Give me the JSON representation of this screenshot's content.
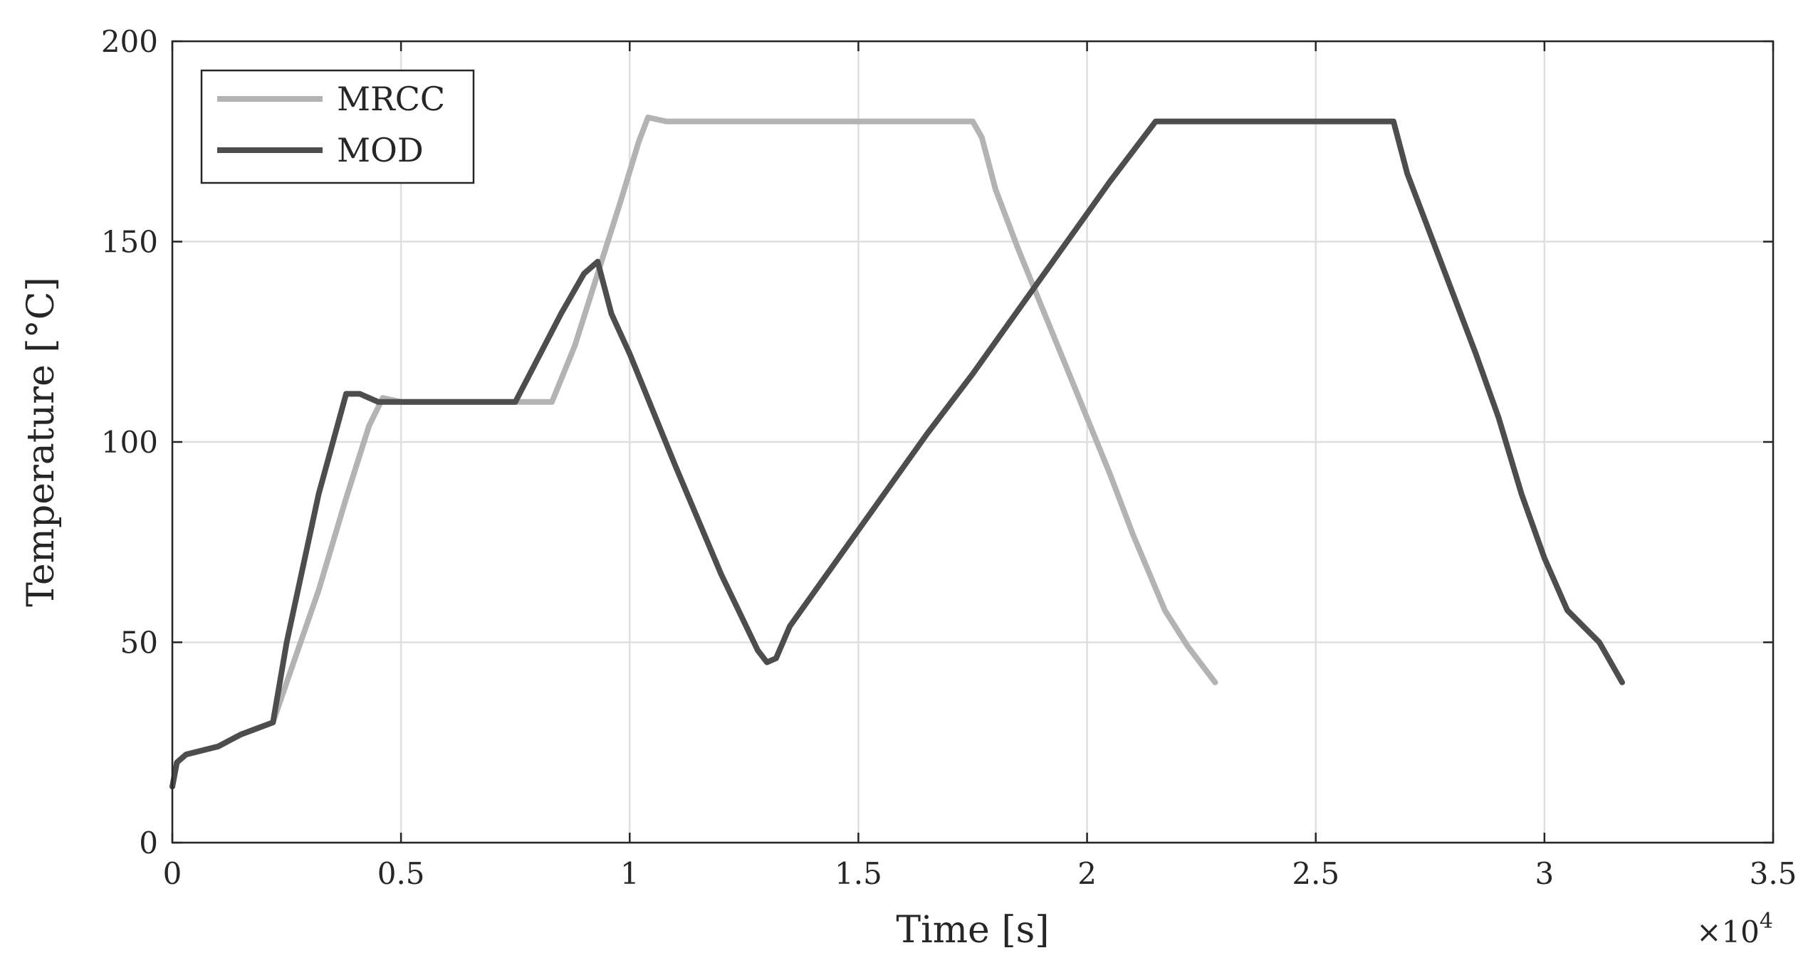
{
  "chart_data": {
    "type": "line",
    "xlabel": "Time [s]",
    "ylabel": "Temperature [°C]",
    "x_multiplier_label": "×10",
    "x_multiplier_exponent": "4",
    "xlim": [
      0,
      35000
    ],
    "ylim": [
      0,
      200
    ],
    "x_ticks": [
      0,
      5000,
      10000,
      15000,
      20000,
      25000,
      30000,
      35000
    ],
    "x_tick_labels": [
      "0",
      "0.5",
      "1",
      "1.5",
      "2",
      "2.5",
      "3",
      "3.5"
    ],
    "y_ticks": [
      0,
      50,
      100,
      150,
      200
    ],
    "y_tick_labels": [
      "0",
      "50",
      "100",
      "150",
      "200"
    ],
    "grid": true,
    "legend_position": "top-left",
    "series": [
      {
        "name": "MRCC",
        "color": "#b3b3b3",
        "x": [
          0,
          100,
          300,
          1000,
          1500,
          2200,
          2500,
          3200,
          3800,
          4300,
          4600,
          5000,
          6000,
          7000,
          8000,
          8300,
          8800,
          9300,
          9800,
          10200,
          10400,
          10800,
          11500,
          13000,
          15000,
          17000,
          17500,
          17700,
          18000,
          18500,
          19000,
          19500,
          20000,
          20500,
          21000,
          21700,
          22200,
          22800
        ],
        "y": [
          14,
          20,
          22,
          24,
          27,
          30,
          40,
          63,
          86,
          104,
          111,
          110,
          110,
          110,
          110,
          110,
          124,
          142,
          160,
          175,
          181,
          180,
          180,
          180,
          180,
          180,
          180,
          176,
          163,
          148,
          134,
          120,
          106,
          92,
          77,
          58,
          49,
          40
        ]
      },
      {
        "name": "MOD",
        "color": "#4d4d4d",
        "x": [
          0,
          100,
          300,
          1000,
          1500,
          2200,
          2500,
          3200,
          3800,
          4100,
          4500,
          5000,
          6000,
          7000,
          7500,
          8000,
          8500,
          9000,
          9300,
          9600,
          10000,
          10500,
          11000,
          12000,
          12800,
          13000,
          13200,
          13500,
          14500,
          15500,
          16500,
          17500,
          18500,
          19500,
          20500,
          21500,
          22000,
          23000,
          25000,
          26700,
          27000,
          27500,
          28000,
          28500,
          29000,
          29500,
          30000,
          30500,
          31200,
          31700
        ],
        "y": [
          14,
          20,
          22,
          24,
          27,
          30,
          50,
          87,
          112,
          112,
          110,
          110,
          110,
          110,
          110,
          121,
          132,
          142,
          145,
          132,
          122,
          108,
          94,
          67,
          48,
          45,
          46,
          54,
          70,
          86,
          102,
          117,
          133,
          149,
          165,
          180,
          180,
          180,
          180,
          180,
          167,
          152,
          137,
          122,
          106,
          87,
          71,
          58,
          50,
          40
        ]
      }
    ]
  }
}
